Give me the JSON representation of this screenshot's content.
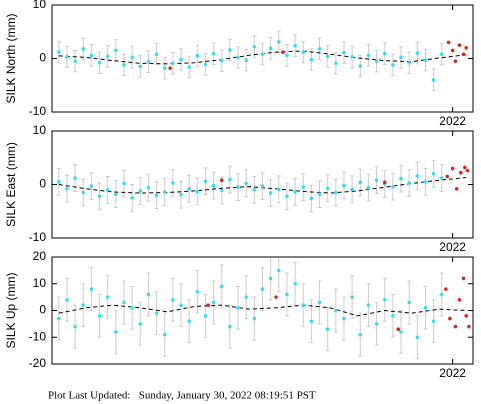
{
  "chart_data": [
    {
      "type": "scatter",
      "y_label": "SILK North (mm)",
      "xlim": [
        2019.05,
        2022.15
      ],
      "xticks": [
        2022
      ],
      "ylim": [
        -10,
        10
      ],
      "yticks": [
        -10,
        0,
        10
      ],
      "x": [
        2019.1,
        2019.16,
        2019.22,
        2019.28,
        2019.34,
        2019.4,
        2019.46,
        2019.52,
        2019.58,
        2019.64,
        2019.7,
        2019.76,
        2019.82,
        2019.88,
        2019.94,
        2020.0,
        2020.06,
        2020.12,
        2020.18,
        2020.24,
        2020.3,
        2020.36,
        2020.42,
        2020.48,
        2020.54,
        2020.6,
        2020.66,
        2020.72,
        2020.78,
        2020.84,
        2020.9,
        2020.96,
        2021.02,
        2021.08,
        2021.14,
        2021.2,
        2021.26,
        2021.32,
        2021.38,
        2021.44,
        2021.5,
        2021.56,
        2021.62,
        2021.68,
        2021.74,
        2021.8,
        2021.86,
        2021.92
      ],
      "series": [
        {
          "color": "#33e0f0",
          "error": 2.0,
          "error_color": "#cccccc",
          "values": [
            1.2,
            0.3,
            -0.5,
            1.8,
            0.6,
            -0.8,
            0.4,
            1.5,
            -1.2,
            0.2,
            -1.5,
            -0.6,
            0.8,
            -1.8,
            -0.9,
            -0.2,
            -1.6,
            0.5,
            -1.1,
            0.9,
            -0.4,
            1.6,
            0.2,
            -0.3,
            2.2,
            0.8,
            1.9,
            3.1,
            0.6,
            2.4,
            1.2,
            -0.2,
            1.8,
            0.4,
            -0.9,
            1.1,
            0.3,
            -1.4,
            0.6,
            -0.5,
            0.9,
            -1.2,
            0.2,
            -0.8,
            1.0,
            -0.3,
            -4.0,
            0.8
          ]
        },
        {
          "color": "#e8201c",
          "x": [
            2019.92,
            2020.75,
            2021.97,
            2022.0,
            2022.02,
            2022.05,
            2022.08,
            2022.1
          ],
          "values": [
            -1.8,
            1.2,
            3.0,
            1.5,
            -0.5,
            2.5,
            0.8,
            2.0
          ]
        },
        {
          "color": "#000000",
          "style": "dashed",
          "x": [
            2019.1,
            2019.3,
            2019.5,
            2019.7,
            2019.9,
            2020.1,
            2020.3,
            2020.5,
            2020.7,
            2020.9,
            2021.1,
            2021.3,
            2021.5,
            2021.7,
            2021.9,
            2022.1
          ],
          "values": [
            0.5,
            0.2,
            -0.4,
            -0.9,
            -1.0,
            -0.8,
            -0.2,
            0.6,
            1.2,
            1.4,
            0.8,
            0.1,
            -0.4,
            -0.6,
            0.1,
            0.7
          ]
        }
      ]
    },
    {
      "type": "scatter",
      "y_label": "SILK East (mm)",
      "xlim": [
        2019.05,
        2022.15
      ],
      "xticks": [
        2022
      ],
      "ylim": [
        -10,
        10
      ],
      "yticks": [
        -10,
        0,
        10
      ],
      "x": [
        2019.1,
        2019.16,
        2019.22,
        2019.28,
        2019.34,
        2019.4,
        2019.46,
        2019.52,
        2019.58,
        2019.64,
        2019.7,
        2019.76,
        2019.82,
        2019.88,
        2019.94,
        2020.0,
        2020.06,
        2020.12,
        2020.18,
        2020.24,
        2020.3,
        2020.36,
        2020.42,
        2020.48,
        2020.54,
        2020.6,
        2020.66,
        2020.72,
        2020.78,
        2020.84,
        2020.9,
        2020.96,
        2021.02,
        2021.08,
        2021.14,
        2021.2,
        2021.26,
        2021.32,
        2021.38,
        2021.44,
        2021.5,
        2021.56,
        2021.62,
        2021.68,
        2021.74,
        2021.8,
        2021.86,
        2021.92
      ],
      "series": [
        {
          "color": "#33e0f0",
          "error": 2.5,
          "error_color": "#cccccc",
          "values": [
            0.5,
            -0.8,
            1.2,
            -1.5,
            -0.3,
            -2.2,
            -1.0,
            -1.8,
            0.2,
            -2.5,
            -1.2,
            -0.6,
            -2.0,
            -1.4,
            0.3,
            -1.9,
            -0.8,
            -1.3,
            0.6,
            -0.2,
            -1.1,
            0.9,
            -0.5,
            0.2,
            -1.0,
            -0.3,
            -1.6,
            -0.9,
            -2.2,
            -1.4,
            -0.5,
            -2.6,
            -1.8,
            -0.7,
            -1.5,
            -0.2,
            -0.9,
            0.4,
            -0.6,
            0.8,
            0.1,
            -0.4,
            1.1,
            0.3,
            1.6,
            0.5,
            2.0,
            1.2
          ]
        },
        {
          "color": "#e8201c",
          "x": [
            2020.3,
            2021.5,
            2021.96,
            2022.0,
            2022.03,
            2022.06,
            2022.09,
            2022.11
          ],
          "values": [
            0.8,
            0.4,
            1.5,
            3.0,
            -0.8,
            2.2,
            3.2,
            2.6
          ]
        },
        {
          "color": "#000000",
          "style": "dashed",
          "x": [
            2019.1,
            2019.3,
            2019.5,
            2019.7,
            2019.9,
            2020.1,
            2020.3,
            2020.5,
            2020.7,
            2020.9,
            2021.1,
            2021.3,
            2021.5,
            2021.7,
            2021.9,
            2022.1
          ],
          "values": [
            0.0,
            -0.8,
            -1.4,
            -1.6,
            -1.5,
            -1.2,
            -0.7,
            -0.4,
            -0.8,
            -1.3,
            -1.6,
            -1.2,
            -0.5,
            0.2,
            0.8,
            1.3
          ]
        }
      ]
    },
    {
      "type": "scatter",
      "y_label": "SILK Up (mm)",
      "xlim": [
        2019.05,
        2022.15
      ],
      "xticks": [
        2022
      ],
      "ylim": [
        -20,
        20
      ],
      "yticks": [
        -20,
        -10,
        0,
        10,
        20
      ],
      "x": [
        2019.1,
        2019.16,
        2019.22,
        2019.28,
        2019.34,
        2019.4,
        2019.46,
        2019.52,
        2019.58,
        2019.64,
        2019.7,
        2019.76,
        2019.82,
        2019.88,
        2019.94,
        2020.0,
        2020.06,
        2020.12,
        2020.18,
        2020.24,
        2020.3,
        2020.36,
        2020.42,
        2020.48,
        2020.54,
        2020.6,
        2020.66,
        2020.72,
        2020.78,
        2020.84,
        2020.9,
        2020.96,
        2021.02,
        2021.08,
        2021.14,
        2021.2,
        2021.26,
        2021.32,
        2021.38,
        2021.44,
        2021.5,
        2021.56,
        2021.62,
        2021.68,
        2021.74,
        2021.8,
        2021.86,
        2021.92
      ],
      "series": [
        {
          "color": "#33e0f0",
          "error": 8,
          "error_color": "#cccccc",
          "values": [
            -3,
            4,
            -6,
            2,
            8,
            -2,
            5,
            -8,
            3,
            1,
            -5,
            6,
            -1,
            -9,
            4,
            2,
            -4,
            7,
            -2,
            3,
            9,
            -6,
            1,
            5,
            -3,
            8,
            12,
            15,
            6,
            10,
            2,
            -4,
            3,
            -7,
            0,
            -3,
            5,
            -9,
            2,
            -5,
            4,
            -2,
            -8,
            3,
            -10,
            1,
            -4,
            6
          ]
        },
        {
          "color": "#e8201c",
          "x": [
            2020.2,
            2020.7,
            2021.6,
            2021.95,
            2021.98,
            2022.02,
            2022.05,
            2022.08,
            2022.1,
            2022.12
          ],
          "values": [
            2,
            5,
            -7,
            8,
            -3,
            -6,
            4,
            12,
            -2,
            -6
          ]
        },
        {
          "color": "#000000",
          "style": "dashed",
          "x": [
            2019.1,
            2019.3,
            2019.5,
            2019.7,
            2019.9,
            2020.1,
            2020.3,
            2020.5,
            2020.7,
            2020.9,
            2021.1,
            2021.3,
            2021.5,
            2021.7,
            2021.9,
            2022.1
          ],
          "values": [
            -1,
            1,
            2,
            1,
            -0.5,
            1.5,
            2,
            0.5,
            1,
            2,
            1,
            -2,
            0,
            -1,
            0.5,
            0
          ]
        }
      ]
    }
  ],
  "footer": "Plot Last Updated:   Sunday, January 30, 2022 08:19:51 PST"
}
